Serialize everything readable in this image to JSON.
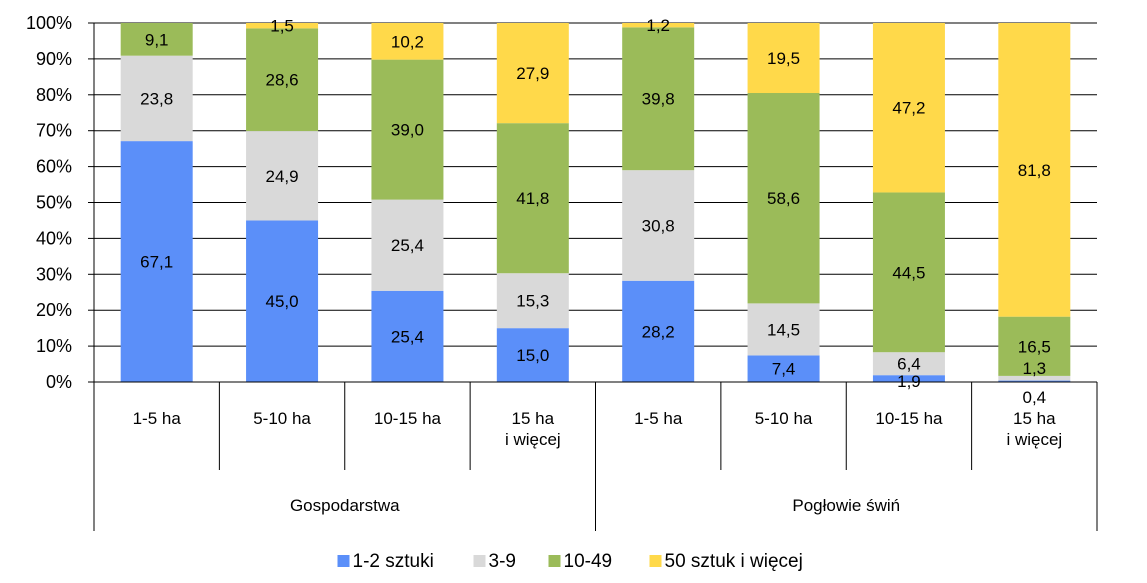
{
  "chart_data": {
    "type": "bar",
    "stacked": "percent",
    "y_ticks": [
      "0%",
      "10%",
      "20%",
      "30%",
      "40%",
      "50%",
      "60%",
      "70%",
      "80%",
      "90%",
      "100%"
    ],
    "ylim": [
      0,
      100
    ],
    "grid": "horizontal",
    "legend_position": "bottom",
    "groups": [
      {
        "label": "Gospodarstwa",
        "categories": [
          [
            "1-5 ha"
          ],
          [
            "5-10 ha"
          ],
          [
            "10-15 ha"
          ],
          [
            "15 ha",
            "i więcej"
          ]
        ]
      },
      {
        "label": "Pogłowie świń",
        "categories": [
          [
            "1-5 ha"
          ],
          [
            "5-10 ha"
          ],
          [
            "10-15 ha"
          ],
          [
            "15 ha",
            "i więcej"
          ]
        ]
      }
    ],
    "series": [
      {
        "name": "1-2 sztuki",
        "color": "#5b8ff9",
        "values": [
          67.1,
          45.0,
          25.4,
          15.0,
          28.2,
          7.4,
          1.9,
          0.4
        ],
        "labels": [
          "67,1",
          "45,0",
          "25,4",
          "15,0",
          "28,2",
          "7,4",
          "1,9",
          "0,4"
        ]
      },
      {
        "name": "3-9",
        "color": "#d9d9d9",
        "values": [
          23.8,
          24.9,
          25.4,
          15.3,
          30.8,
          14.5,
          6.4,
          1.3
        ],
        "labels": [
          "23,8",
          "24,9",
          "25,4",
          "15,3",
          "30,8",
          "14,5",
          "6,4",
          "1,3"
        ]
      },
      {
        "name": "10-49",
        "color": "#9bbb59",
        "values": [
          9.1,
          28.6,
          39.0,
          41.8,
          39.8,
          58.6,
          44.5,
          16.5
        ],
        "labels": [
          "9,1",
          "28,6",
          "39,0",
          "41,8",
          "39,8",
          "58,6",
          "44,5",
          "16,5"
        ]
      },
      {
        "name": "50 sztuk i więcej",
        "color": "#ffd94a",
        "values": [
          0,
          1.5,
          10.2,
          27.9,
          1.2,
          19.5,
          47.2,
          81.8
        ],
        "labels": [
          "",
          "1,5",
          "10,2",
          "27,9",
          "1,2",
          "19,5",
          "47,2",
          "81,8"
        ]
      }
    ]
  }
}
